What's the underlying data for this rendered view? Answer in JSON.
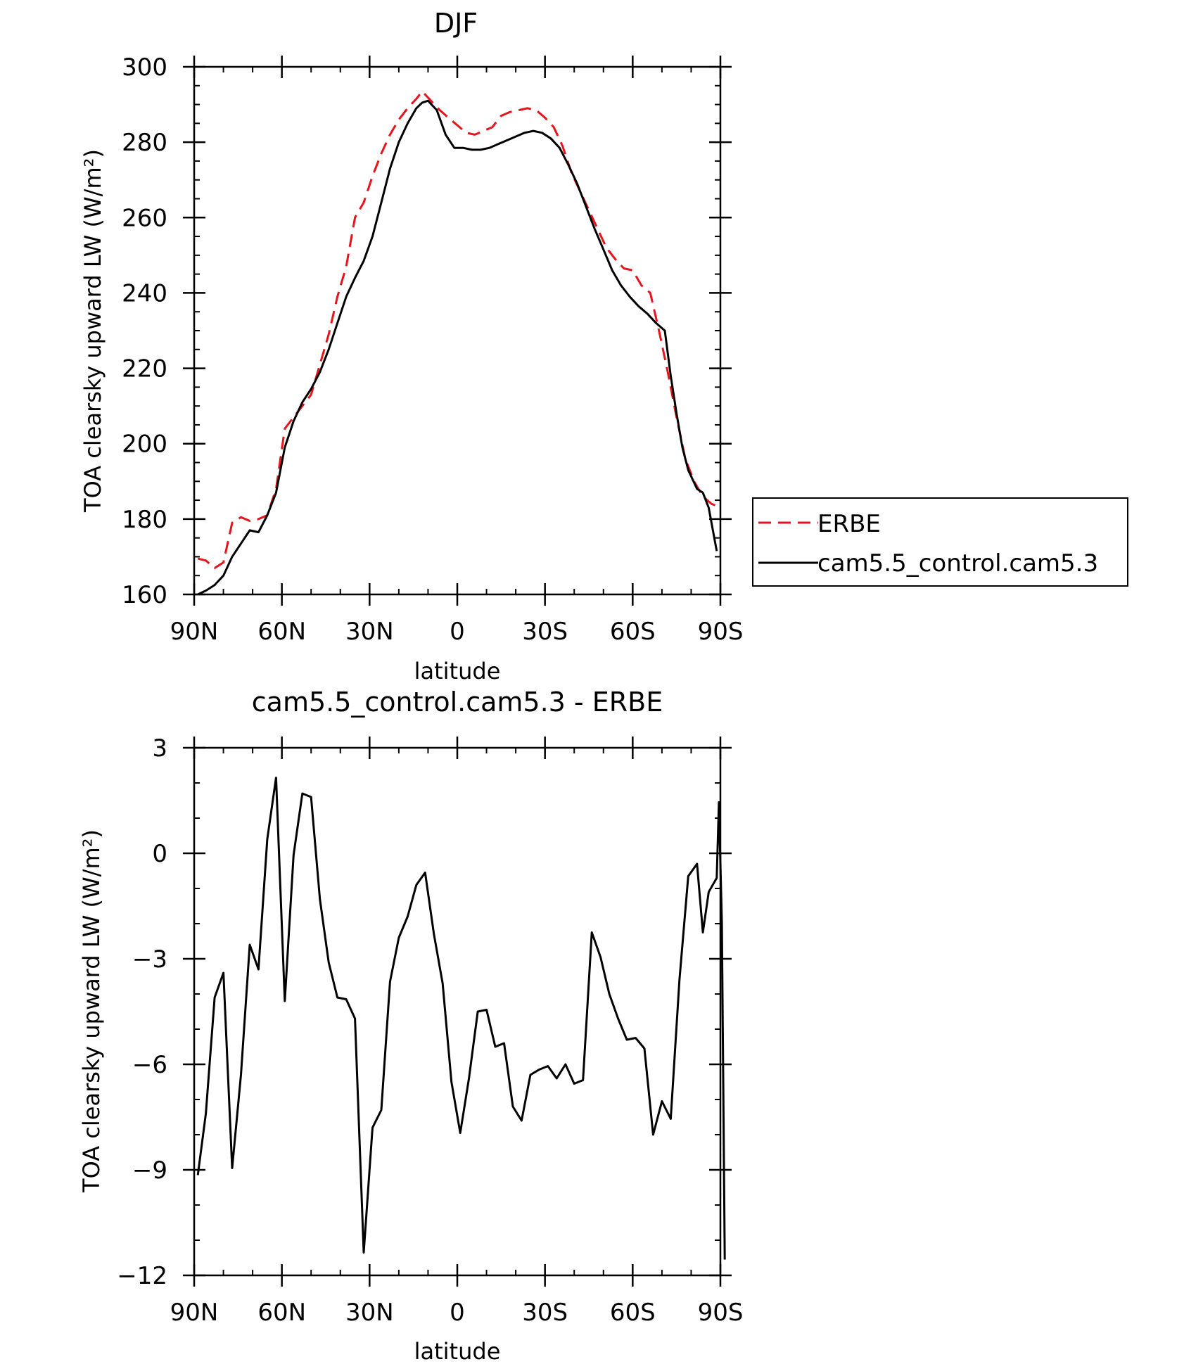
{
  "colors": {
    "erbe": "#e8141b",
    "model": "#000000",
    "axis": "#000000",
    "background": "#ffffff"
  },
  "chart_data": [
    {
      "type": "line",
      "title": "DJF",
      "xlabel": "latitude",
      "ylabel": "TOA clearsky upward LW (W/m²)",
      "ylim": [
        160,
        300
      ],
      "xlim": [
        -90,
        90
      ],
      "grid": false,
      "legend_position": "right",
      "x_ticks": [
        {
          "value": -90,
          "label": "90N"
        },
        {
          "value": -60,
          "label": "60N"
        },
        {
          "value": -30,
          "label": "30N"
        },
        {
          "value": 0,
          "label": "0"
        },
        {
          "value": 30,
          "label": "30S"
        },
        {
          "value": 60,
          "label": "60S"
        },
        {
          "value": 90,
          "label": "90S"
        }
      ],
      "y_ticks": [
        {
          "value": 160,
          "label": "160"
        },
        {
          "value": 180,
          "label": "180"
        },
        {
          "value": 200,
          "label": "200"
        },
        {
          "value": 220,
          "label": "220"
        },
        {
          "value": 240,
          "label": "240"
        },
        {
          "value": 260,
          "label": "260"
        },
        {
          "value": 280,
          "label": "280"
        },
        {
          "value": 300,
          "label": "300"
        }
      ],
      "series": [
        {
          "name": "ERBE",
          "style": "dashed",
          "color": "#e8141b",
          "points": [
            [
              -88.75,
              169.5
            ],
            [
              -86,
              169
            ],
            [
              -83,
              167
            ],
            [
              -80,
              168.5
            ],
            [
              -77,
              179
            ],
            [
              -74,
              180.5
            ],
            [
              -71,
              179.5
            ],
            [
              -68,
              180
            ],
            [
              -65,
              181
            ],
            [
              -62,
              188
            ],
            [
              -59,
              204
            ],
            [
              -56,
              207
            ],
            [
              -53,
              210
            ],
            [
              -50,
              213
            ],
            [
              -47,
              221
            ],
            [
              -44,
              229
            ],
            [
              -41,
              239
            ],
            [
              -38,
              247
            ],
            [
              -35,
              260
            ],
            [
              -32,
              264
            ],
            [
              -29,
              271
            ],
            [
              -26,
              277
            ],
            [
              -23,
              282
            ],
            [
              -20,
              286
            ],
            [
              -17,
              289
            ],
            [
              -14,
              291.5
            ],
            [
              -12,
              293.5
            ],
            [
              -9,
              291
            ],
            [
              -6,
              288.5
            ],
            [
              -3,
              286.5
            ],
            [
              0,
              284.5
            ],
            [
              3,
              282.5
            ],
            [
              6,
              282
            ],
            [
              9,
              283
            ],
            [
              12,
              284
            ],
            [
              15,
              287
            ],
            [
              18,
              288
            ],
            [
              21,
              288.5
            ],
            [
              24,
              289
            ],
            [
              27,
              288.5
            ],
            [
              30,
              286.5
            ],
            [
              33,
              284
            ],
            [
              36,
              279
            ],
            [
              39,
              272
            ],
            [
              42,
              267
            ],
            [
              45,
              262
            ],
            [
              48,
              257
            ],
            [
              51,
              252
            ],
            [
              54,
              249
            ],
            [
              57,
              246.5
            ],
            [
              60,
              246
            ],
            [
              63,
              242
            ],
            [
              66,
              240
            ],
            [
              69,
              230
            ],
            [
              72,
              219
            ],
            [
              75,
              207
            ],
            [
              78,
              196
            ],
            [
              81,
              190
            ],
            [
              84,
              186
            ],
            [
              87,
              184
            ],
            [
              88.75,
              183.5
            ]
          ]
        },
        {
          "name": "cam5.5_control.cam5.3",
          "style": "solid",
          "color": "#000000",
          "points": [
            [
              -88.75,
              160
            ],
            [
              -86,
              161
            ],
            [
              -83,
              162.5
            ],
            [
              -80,
              165
            ],
            [
              -77,
              170
            ],
            [
              -74,
              173.5
            ],
            [
              -71,
              177
            ],
            [
              -68,
              176.5
            ],
            [
              -65,
              181
            ],
            [
              -62,
              187
            ],
            [
              -59,
              199
            ],
            [
              -56,
              206
            ],
            [
              -53,
              211
            ],
            [
              -50,
              214.5
            ],
            [
              -47,
              219
            ],
            [
              -44,
              225
            ],
            [
              -41,
              232
            ],
            [
              -38,
              239
            ],
            [
              -35,
              244
            ],
            [
              -32,
              248.5
            ],
            [
              -29,
              255
            ],
            [
              -26,
              264
            ],
            [
              -23,
              273
            ],
            [
              -20,
              280
            ],
            [
              -17,
              285
            ],
            [
              -14,
              289
            ],
            [
              -12,
              290.5
            ],
            [
              -10,
              291
            ],
            [
              -7,
              288.5
            ],
            [
              -4,
              282
            ],
            [
              -1,
              278.5
            ],
            [
              2,
              278.5
            ],
            [
              5,
              278
            ],
            [
              8,
              278
            ],
            [
              11,
              278.5
            ],
            [
              14,
              279.5
            ],
            [
              17,
              280.5
            ],
            [
              20,
              281.5
            ],
            [
              23,
              282.5
            ],
            [
              26,
              283
            ],
            [
              29,
              282.5
            ],
            [
              32,
              281
            ],
            [
              35,
              278.5
            ],
            [
              38,
              274
            ],
            [
              41,
              269
            ],
            [
              44,
              263
            ],
            [
              47,
              257
            ],
            [
              50,
              251.5
            ],
            [
              53,
              246
            ],
            [
              56,
              242
            ],
            [
              59,
              239
            ],
            [
              62,
              236.5
            ],
            [
              65,
              234.5
            ],
            [
              68,
              232
            ],
            [
              71,
              230
            ],
            [
              73,
              218
            ],
            [
              75,
              208
            ],
            [
              77,
              199
            ],
            [
              79,
              193
            ],
            [
              82,
              188
            ],
            [
              84,
              187
            ],
            [
              86,
              183
            ],
            [
              88.75,
              171.5
            ]
          ]
        }
      ]
    },
    {
      "type": "line",
      "title": "cam5.5_control.cam5.3 - ERBE",
      "xlabel": "latitude",
      "ylabel": "TOA clearsky upward LW (W/m²)",
      "ylim": [
        -12,
        3
      ],
      "xlim": [
        -90,
        90
      ],
      "grid": false,
      "x_ticks": [
        {
          "value": -90,
          "label": "90N"
        },
        {
          "value": -60,
          "label": "60N"
        },
        {
          "value": -30,
          "label": "30N"
        },
        {
          "value": 0,
          "label": "0"
        },
        {
          "value": 30,
          "label": "30S"
        },
        {
          "value": 60,
          "label": "60S"
        },
        {
          "value": 90,
          "label": "90S"
        }
      ],
      "y_ticks": [
        {
          "value": -12,
          "label": "−12"
        },
        {
          "value": -9,
          "label": "−9"
        },
        {
          "value": -6,
          "label": "−6"
        },
        {
          "value": -3,
          "label": "−3"
        },
        {
          "value": 0,
          "label": "0"
        },
        {
          "value": 3,
          "label": "3"
        }
      ],
      "series": [
        {
          "style": "solid",
          "color": "#000000",
          "points": [
            [
              -88.75,
              -9.15
            ],
            [
              -86,
              -7.4
            ],
            [
              -83,
              -4.1
            ],
            [
              -80,
              -3.4
            ],
            [
              -77,
              -8.95
            ],
            [
              -74,
              -6.3
            ],
            [
              -71,
              -2.6
            ],
            [
              -68,
              -3.3
            ],
            [
              -65,
              0.4
            ],
            [
              -62,
              2.15
            ],
            [
              -59,
              -4.2
            ],
            [
              -56,
              -0.05
            ],
            [
              -53,
              1.7
            ],
            [
              -50,
              1.6
            ],
            [
              -47,
              -1.3
            ],
            [
              -44,
              -3.1
            ],
            [
              -41,
              -4.1
            ],
            [
              -38,
              -4.15
            ],
            [
              -35,
              -4.7
            ],
            [
              -32,
              -11.35
            ],
            [
              -29,
              -7.8
            ],
            [
              -26,
              -7.3
            ],
            [
              -23,
              -3.65
            ],
            [
              -20,
              -2.4
            ],
            [
              -17,
              -1.8
            ],
            [
              -14,
              -0.9
            ],
            [
              -11,
              -0.55
            ],
            [
              -8,
              -2.3
            ],
            [
              -5,
              -3.7
            ],
            [
              -2,
              -6.5
            ],
            [
              1,
              -7.95
            ],
            [
              4,
              -6.4
            ],
            [
              7,
              -4.5
            ],
            [
              10,
              -4.45
            ],
            [
              13,
              -5.5
            ],
            [
              16,
              -5.4
            ],
            [
              19,
              -7.2
            ],
            [
              22,
              -7.6
            ],
            [
              25,
              -6.3
            ],
            [
              28,
              -6.15
            ],
            [
              31,
              -6.05
            ],
            [
              34,
              -6.4
            ],
            [
              37,
              -6.0
            ],
            [
              40,
              -6.55
            ],
            [
              43,
              -6.45
            ],
            [
              46,
              -2.25
            ],
            [
              49,
              -2.95
            ],
            [
              52,
              -4.0
            ],
            [
              55,
              -4.7
            ],
            [
              58,
              -5.3
            ],
            [
              61,
              -5.25
            ],
            [
              64,
              -5.55
            ],
            [
              67,
              -8.0
            ],
            [
              70,
              -7.05
            ],
            [
              73,
              -7.55
            ],
            [
              76,
              -3.6
            ],
            [
              79,
              -0.65
            ],
            [
              82,
              -0.3
            ],
            [
              84,
              -2.25
            ],
            [
              86,
              -1.1
            ],
            [
              88.75,
              -0.7
            ],
            [
              89.5,
              1.45
            ],
            [
              90.5,
              -2.0
            ],
            [
              91.5,
              -11.55
            ]
          ]
        }
      ]
    }
  ]
}
